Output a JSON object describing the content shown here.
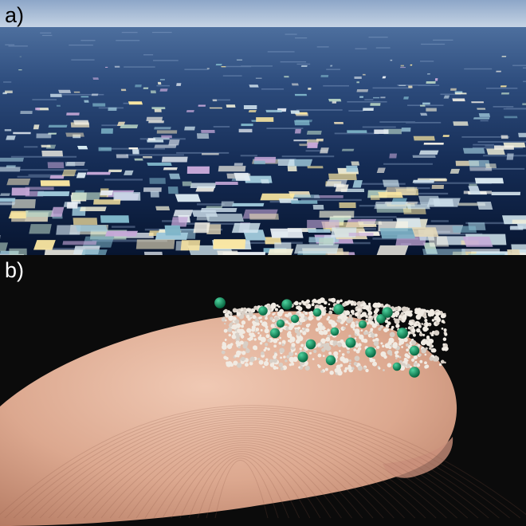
{
  "panels": [
    {
      "label": "a)",
      "subject": "ocean-surface-covered-with-floating-plastic-debris"
    },
    {
      "label": "b)",
      "subject": "fingertip-holding-white-and-green-microplastic-beads"
    }
  ],
  "colors": {
    "sky": "#a9bdd8",
    "ocean_deep": "#0a1a3a",
    "ocean_light": "#3a5f95",
    "black_bg": "#0a0a0a",
    "skin": "#e5b9a3",
    "bead_white": "#efe9e2",
    "bead_green": "#0e8a5a"
  }
}
